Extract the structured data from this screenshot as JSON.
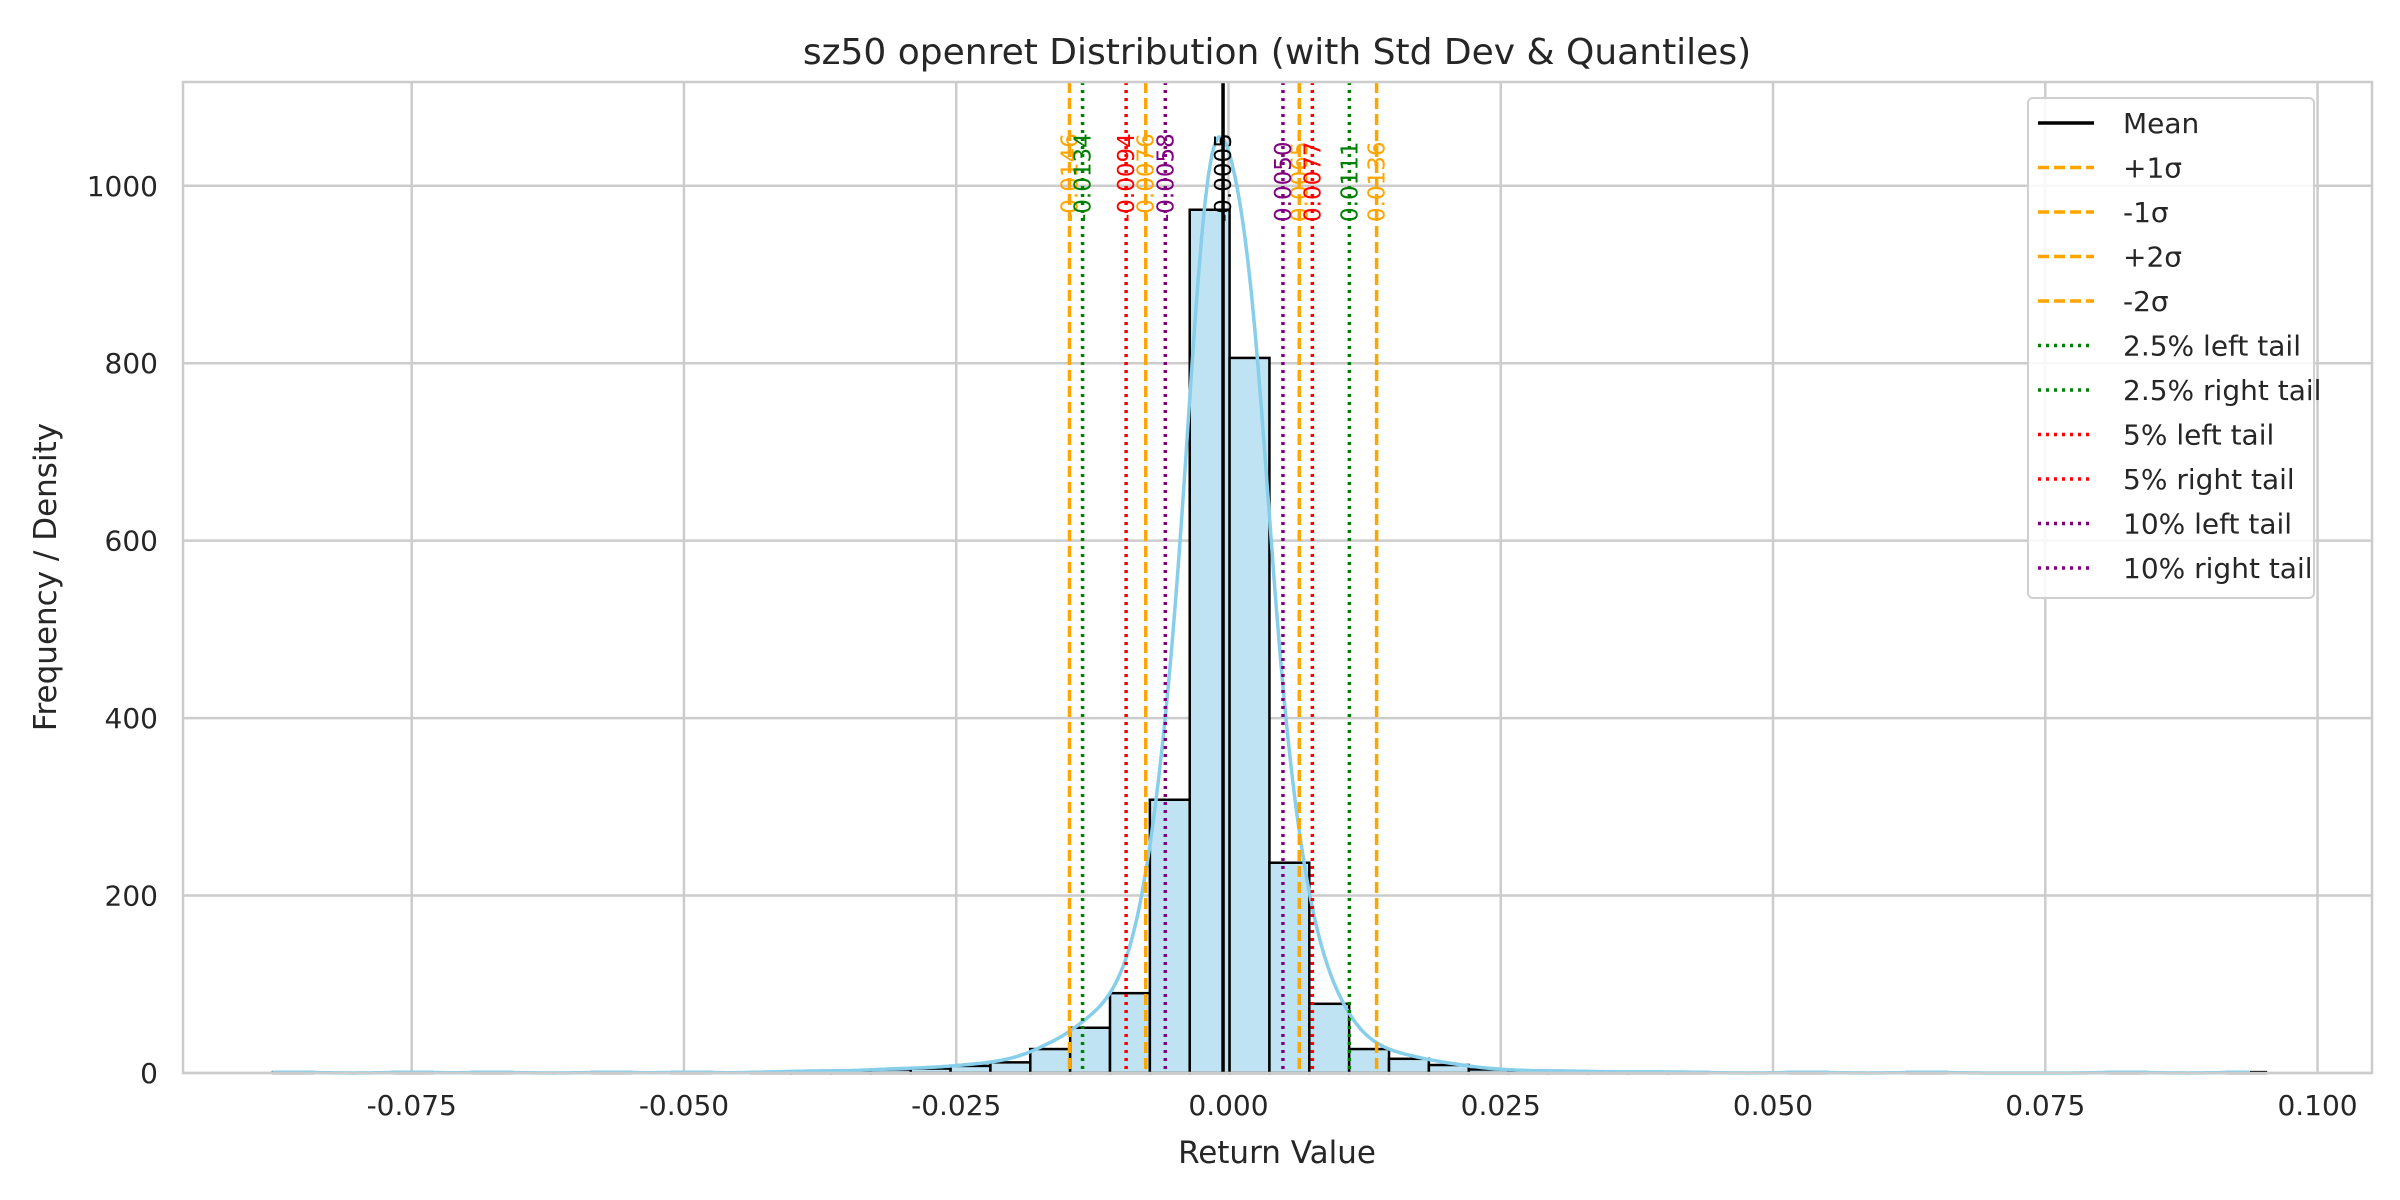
{
  "chart_data": {
    "type": "bar",
    "title": "sz50 openret Distribution (with Std Dev & Quantiles)",
    "xlabel": "Return Value",
    "ylabel": "Frequency / Density",
    "xlim": [
      -0.096,
      0.105
    ],
    "ylim": [
      0,
      1117
    ],
    "grid": true,
    "legend_position": "top-right",
    "x_ticks": [
      -0.075,
      -0.05,
      -0.025,
      0.0,
      0.025,
      0.05,
      0.075,
      0.1
    ],
    "x_tick_labels": [
      "-0.075",
      "-0.050",
      "-0.025",
      "0.000",
      "0.025",
      "0.050",
      "0.075",
      "0.100"
    ],
    "y_ticks": [
      0,
      200,
      400,
      600,
      800,
      1000
    ],
    "y_tick_labels": [
      "0",
      "200",
      "400",
      "600",
      "800",
      "1000"
    ],
    "histogram": {
      "bin_start": -0.08774,
      "bin_width": 0.00366,
      "counts": [
        1,
        0,
        0,
        1,
        0,
        1,
        0,
        0,
        1,
        0,
        1,
        0,
        1,
        2,
        2,
        4,
        5,
        8,
        12,
        27,
        51,
        90,
        308,
        973,
        806,
        237,
        78,
        27,
        16,
        9,
        4,
        2,
        2,
        1,
        1,
        1,
        0,
        0,
        1,
        0,
        0,
        1,
        0,
        0,
        0,
        0,
        1,
        0,
        0,
        1
      ],
      "fill_color": "#bfe3f2",
      "edge_color": "#000000"
    },
    "kde": {
      "color": "#87ceeb",
      "x_range": [
        -0.0878,
        0.0938
      ]
    },
    "vlines": [
      {
        "name": "Mean",
        "value": -0.0005,
        "label": "-0.0005",
        "color": "#000000",
        "style": "solid"
      },
      {
        "name": "+1σ",
        "value": 0.0065,
        "label": "0.0065",
        "color": "#ffa500",
        "style": "dashed"
      },
      {
        "name": "-1σ",
        "value": -0.0076,
        "label": "-0.0076",
        "color": "#ffa500",
        "style": "dashed"
      },
      {
        "name": "+2σ",
        "value": 0.0136,
        "label": "0.0136",
        "color": "#ffa500",
        "style": "dashed"
      },
      {
        "name": "-2σ",
        "value": -0.0146,
        "label": "-0.0146",
        "color": "#ffa500",
        "style": "dashed"
      },
      {
        "name": "2.5% left tail",
        "value": -0.0134,
        "label": "-0.0134",
        "color": "#008000",
        "style": "dotted"
      },
      {
        "name": "2.5% right tail",
        "value": 0.0111,
        "label": "0.0111",
        "color": "#008000",
        "style": "dotted"
      },
      {
        "name": "5% left tail",
        "value": -0.0094,
        "label": "-0.0094",
        "color": "#ff0000",
        "style": "dotted"
      },
      {
        "name": "5% right tail",
        "value": 0.0077,
        "label": "0.0077",
        "color": "#ff0000",
        "style": "dotted"
      },
      {
        "name": "10% left tail",
        "value": -0.0058,
        "label": "-0.0058",
        "color": "#800080",
        "style": "dotted"
      },
      {
        "name": "10% right tail",
        "value": 0.005,
        "label": "0.0050",
        "color": "#800080",
        "style": "dotted"
      }
    ],
    "legend": [
      {
        "label": "Mean",
        "color": "#000000",
        "style": "solid"
      },
      {
        "label": "+1σ",
        "color": "#ffa500",
        "style": "dashed"
      },
      {
        "label": "-1σ",
        "color": "#ffa500",
        "style": "dashed"
      },
      {
        "label": "+2σ",
        "color": "#ffa500",
        "style": "dashed"
      },
      {
        "label": "-2σ",
        "color": "#ffa500",
        "style": "dashed"
      },
      {
        "label": "2.5% left tail",
        "color": "#008000",
        "style": "dotted"
      },
      {
        "label": "2.5% right tail",
        "color": "#008000",
        "style": "dotted"
      },
      {
        "label": "5% left tail",
        "color": "#ff0000",
        "style": "dotted"
      },
      {
        "label": "5% right tail",
        "color": "#ff0000",
        "style": "dotted"
      },
      {
        "label": "10% left tail",
        "color": "#800080",
        "style": "dotted"
      },
      {
        "label": "10% right tail",
        "color": "#800080",
        "style": "dotted"
      }
    ]
  }
}
